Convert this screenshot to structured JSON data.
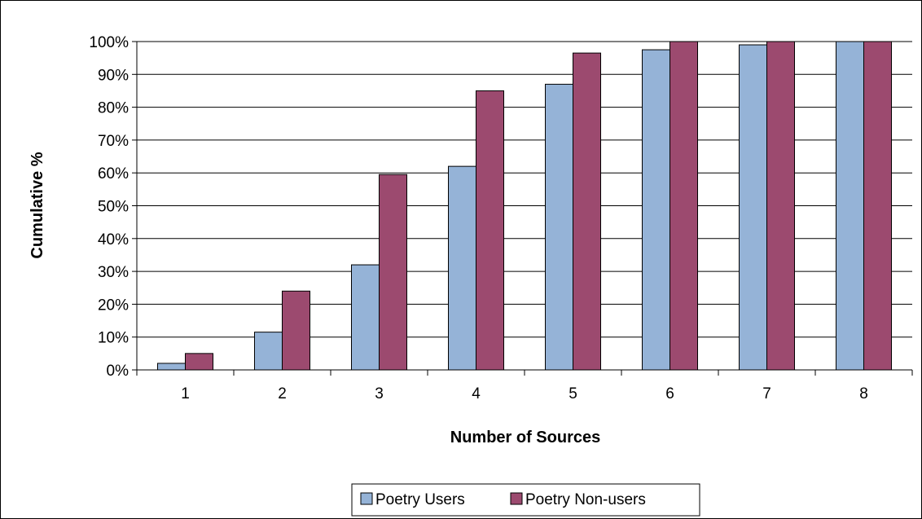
{
  "chart_data": {
    "type": "bar",
    "categories": [
      "1",
      "2",
      "3",
      "4",
      "5",
      "6",
      "7",
      "8"
    ],
    "series": [
      {
        "name": "Poetry Users",
        "color": "#95b3d7",
        "values": [
          2,
          11.5,
          32,
          62,
          87,
          97.5,
          99,
          100
        ]
      },
      {
        "name": "Poetry Non-users",
        "color": "#9c4a6f",
        "values": [
          5,
          24,
          59.5,
          85,
          96.5,
          100,
          100,
          100
        ]
      }
    ],
    "xlabel": "Number of Sources",
    "ylabel": "Cumulative %",
    "ylim": [
      0,
      100
    ],
    "ytick_step": 10,
    "ytick_suffix": "%",
    "grid": true,
    "legend": "bottom-center"
  }
}
